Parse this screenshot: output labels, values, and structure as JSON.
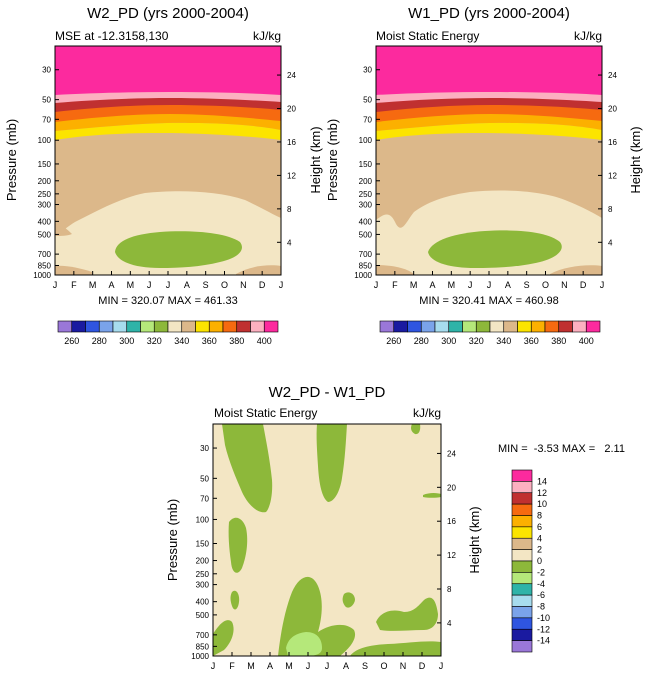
{
  "colors": {
    "c_lt260": "#9a77d8",
    "c_260_270": "#1a1aa0",
    "c_270_280": "#2f55e0",
    "c_280_290": "#7aa3ea",
    "c_290_300": "#a7dcee",
    "c_300_310": "#2fb3a8",
    "c_310_320": "#b5e87a",
    "c_320_330": "#8db83a",
    "c_330_340": "#f3e6c4",
    "c_340_350": "#dcb88a",
    "c_350_360": "#fce400",
    "c_360_370": "#fcb000",
    "c_370_380": "#f66a10",
    "c_380_390": "#c03030",
    "c_390_400": "#fcb0c0",
    "c_gt400": "#fc2a9e"
  },
  "chart_data": [
    {
      "id": "top-left",
      "type": "contour",
      "title": "W2_PD (yrs 2000-2004)",
      "left_label": "MSE at -12.3158,130",
      "right_label": "kJ/kg",
      "ylabel": "Pressure (mb)",
      "ylabel_right": "Height (km)",
      "x_ticks": [
        "J",
        "F",
        "M",
        "A",
        "M",
        "J",
        "J",
        "A",
        "S",
        "O",
        "N",
        "D",
        "J"
      ],
      "pressure_ticks": [
        30,
        50,
        70,
        100,
        150,
        200,
        250,
        300,
        400,
        500,
        700,
        850,
        1000
      ],
      "height_ticks": [
        4,
        8,
        12,
        16,
        20,
        24
      ],
      "ylim_pressure": [
        1000,
        20
      ],
      "stats": "MIN = 320.07 MAX = 461.33",
      "stats_min": 320.07,
      "stats_max": 461.33,
      "levels": [
        260,
        270,
        280,
        290,
        300,
        310,
        320,
        330,
        340,
        350,
        360,
        370,
        380,
        390,
        400
      ],
      "colorbar_labels": [
        "260",
        "280",
        "300",
        "320",
        "340",
        "360",
        "380",
        "400"
      ]
    },
    {
      "id": "top-right",
      "type": "contour",
      "title": "W1_PD (yrs 2000-2004)",
      "left_label": "Moist Static Energy",
      "right_label": "kJ/kg",
      "ylabel": "Pressure (mb)",
      "ylabel_right": "Height (km)",
      "x_ticks": [
        "J",
        "F",
        "M",
        "A",
        "M",
        "J",
        "J",
        "A",
        "S",
        "O",
        "N",
        "D",
        "J"
      ],
      "pressure_ticks": [
        30,
        50,
        70,
        100,
        150,
        200,
        250,
        300,
        400,
        500,
        700,
        850,
        1000
      ],
      "height_ticks": [
        4,
        8,
        12,
        16,
        20,
        24
      ],
      "ylim_pressure": [
        1000,
        20
      ],
      "stats": "MIN = 320.41 MAX = 460.98",
      "stats_min": 320.41,
      "stats_max": 460.98,
      "levels": [
        260,
        270,
        280,
        290,
        300,
        310,
        320,
        330,
        340,
        350,
        360,
        370,
        380,
        390,
        400
      ],
      "colorbar_labels": [
        "260",
        "280",
        "300",
        "320",
        "340",
        "360",
        "380",
        "400"
      ]
    },
    {
      "id": "bottom",
      "type": "contour",
      "title": "W2_PD - W1_PD",
      "left_label": "Moist Static Energy",
      "right_label": "kJ/kg",
      "ylabel": "Pressure (mb)",
      "ylabel_right": "Height (km)",
      "x_ticks": [
        "J",
        "F",
        "M",
        "A",
        "M",
        "J",
        "J",
        "A",
        "S",
        "O",
        "N",
        "D",
        "J"
      ],
      "pressure_ticks": [
        30,
        50,
        70,
        100,
        150,
        200,
        250,
        300,
        400,
        500,
        700,
        850,
        1000
      ],
      "height_ticks": [
        4,
        8,
        12,
        16,
        20,
        24
      ],
      "ylim_pressure": [
        1000,
        20
      ],
      "stats": "MIN =  -3.53 MAX =   2.11",
      "stats_min": -3.53,
      "stats_max": 2.11,
      "levels": [
        -14,
        -12,
        -10,
        -8,
        -6,
        -4,
        -2,
        0,
        2,
        4,
        6,
        8,
        10,
        12,
        14
      ],
      "colorbar_labels": [
        "14",
        "12",
        "10",
        "8",
        "6",
        "4",
        "2",
        "0",
        "-2",
        "-4",
        "-6",
        "-8",
        "-10",
        "-12",
        "-14"
      ]
    }
  ]
}
